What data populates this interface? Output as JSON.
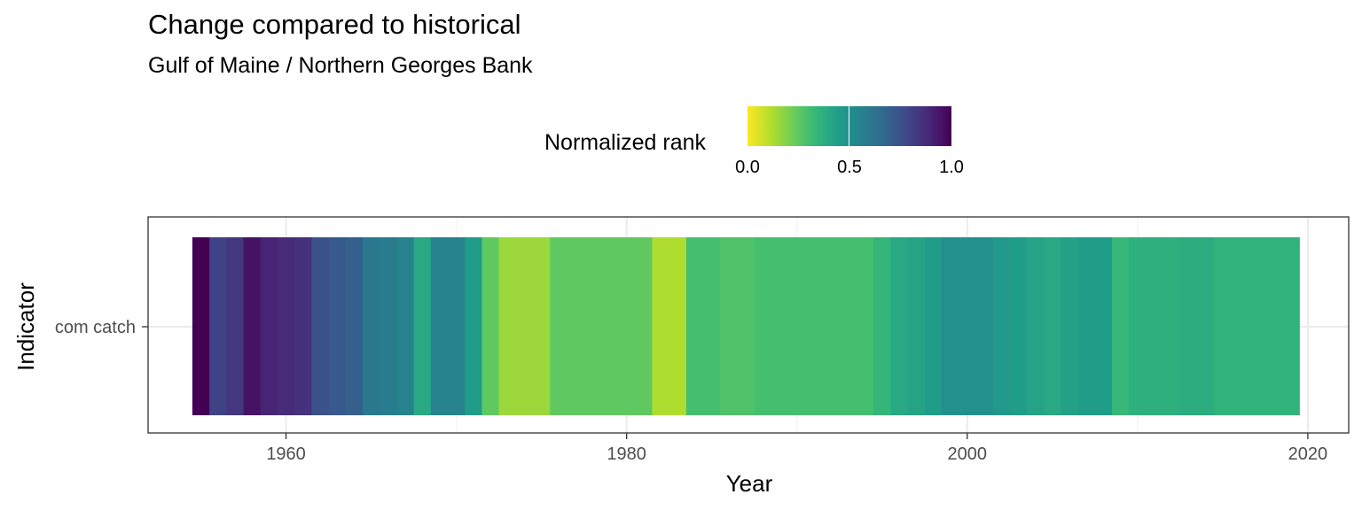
{
  "title": "Change compared to historical",
  "subtitle": "Gulf of Maine / Northern Georges Bank",
  "legend": {
    "title": "Normalized rank",
    "ticks": [
      "0.0",
      "0.5",
      "1.0"
    ],
    "colors": [
      "#fde725",
      "#b5de2b",
      "#6ece58",
      "#35b779",
      "#1f9e89",
      "#26828e",
      "#31688e",
      "#3e4989",
      "#482878",
      "#440154"
    ]
  },
  "chart_data": {
    "type": "heatmap",
    "title": "Change compared to historical",
    "subtitle": "Gulf of Maine / Northern Georges Bank",
    "xlabel": "Year",
    "ylabel": "Indicator",
    "x_ticks": [
      "1960",
      "1980",
      "2000",
      "2020"
    ],
    "xlim": [
      1951.9,
      2022.4
    ],
    "y_categories": [
      "com catch"
    ],
    "grid": true,
    "legend_position": "top",
    "years": [
      1955,
      1956,
      1957,
      1958,
      1959,
      1960,
      1961,
      1962,
      1963,
      1964,
      1965,
      1966,
      1967,
      1968,
      1969,
      1970,
      1971,
      1972,
      1973,
      1974,
      1975,
      1976,
      1977,
      1978,
      1979,
      1980,
      1981,
      1982,
      1983,
      1984,
      1985,
      1986,
      1987,
      1988,
      1989,
      1990,
      1991,
      1992,
      1993,
      1994,
      1995,
      1996,
      1997,
      1998,
      1999,
      2000,
      2001,
      2002,
      2003,
      2004,
      2005,
      2006,
      2007,
      2008,
      2009,
      2010,
      2011,
      2012,
      2013,
      2014,
      2015,
      2016,
      2017,
      2018,
      2019
    ],
    "values": [
      1.0,
      0.8,
      0.84,
      0.95,
      0.9,
      0.88,
      0.86,
      0.75,
      0.72,
      0.7,
      0.6,
      0.58,
      0.55,
      0.4,
      0.55,
      0.55,
      0.45,
      0.25,
      0.15,
      0.15,
      0.15,
      0.25,
      0.25,
      0.25,
      0.25,
      0.25,
      0.25,
      0.12,
      0.12,
      0.3,
      0.3,
      0.28,
      0.28,
      0.3,
      0.3,
      0.3,
      0.3,
      0.3,
      0.3,
      0.3,
      0.34,
      0.4,
      0.42,
      0.45,
      0.5,
      0.5,
      0.5,
      0.47,
      0.45,
      0.42,
      0.4,
      0.43,
      0.45,
      0.45,
      0.33,
      0.37,
      0.37,
      0.37,
      0.38,
      0.38,
      0.35,
      0.35,
      0.35,
      0.35,
      0.35
    ]
  }
}
